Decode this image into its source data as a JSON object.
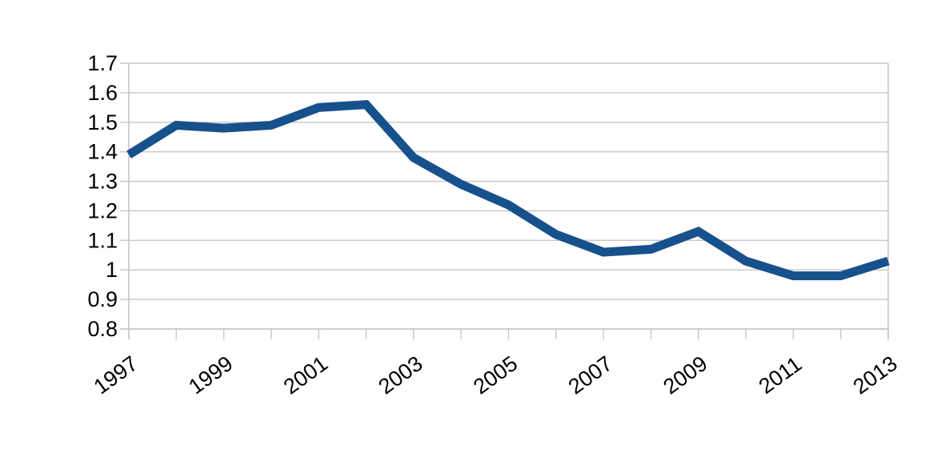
{
  "page": {
    "background_color": "#FFFFFF"
  },
  "chart_data": {
    "type": "line",
    "title": "",
    "xlabel": "",
    "ylabel": "",
    "legend": "none",
    "grid": "horizontal",
    "x": [
      1997,
      1998,
      1999,
      2000,
      2001,
      2002,
      2003,
      2004,
      2005,
      2006,
      2007,
      2008,
      2009,
      2010,
      2011,
      2012,
      2013
    ],
    "series": [
      {
        "name": "",
        "values": [
          1.39,
          1.49,
          1.48,
          1.49,
          1.55,
          1.56,
          1.38,
          1.29,
          1.22,
          1.12,
          1.06,
          1.07,
          1.13,
          1.03,
          0.98,
          0.98,
          1.03
        ]
      }
    ],
    "xlim": [
      1997,
      2013
    ],
    "ylim": [
      0.8,
      1.7
    ],
    "y_axis_ticks": [
      0.8,
      0.9,
      1.0,
      1.1,
      1.2,
      1.3,
      1.4,
      1.5,
      1.6,
      1.7
    ],
    "y_axis_tick_labels": [
      "0.8",
      "0.9",
      "1",
      "1.1",
      "1.2",
      "1.3",
      "1.4",
      "1.5",
      "1.6",
      "1.7"
    ],
    "x_axis_tick_years": [
      1997,
      1998,
      1999,
      2000,
      2001,
      2002,
      2003,
      2004,
      2005,
      2006,
      2007,
      2008,
      2009,
      2010,
      2011,
      2012,
      2013
    ],
    "x_axis_label_years": [
      "1997",
      "1999",
      "2001",
      "2003",
      "2005",
      "2007",
      "2009",
      "2011",
      "2013"
    ],
    "x_label_rotation_deg": -36,
    "line_width": 11,
    "colors": {
      "line": "#17518C",
      "grid": "#C6C6C6",
      "axis": "#C6C6C6",
      "text": "#000000",
      "background": "#FFFFFF"
    }
  }
}
